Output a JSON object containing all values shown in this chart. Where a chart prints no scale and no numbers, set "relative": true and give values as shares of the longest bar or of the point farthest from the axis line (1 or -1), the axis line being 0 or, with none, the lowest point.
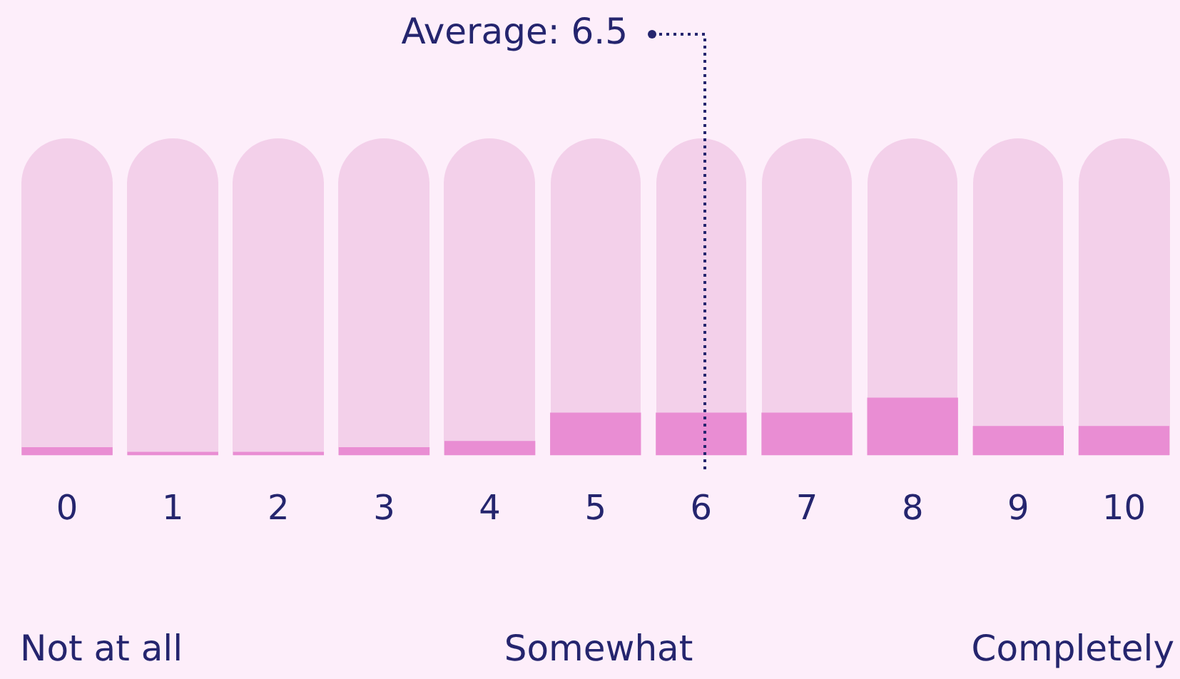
{
  "chart_data": {
    "type": "bar",
    "relative": true,
    "categories": [
      "0",
      "1",
      "2",
      "3",
      "4",
      "5",
      "6",
      "7",
      "8",
      "9",
      "10"
    ],
    "values": [
      0.14,
      0.06,
      0.06,
      0.14,
      0.25,
      0.74,
      0.74,
      0.74,
      1,
      0.51,
      0.51
    ],
    "color": "#e98dd3",
    "annotations": [
      "Average: 6.5",
      "Not at all",
      "Somewhat",
      "Completely"
    ],
    "grid": false,
    "legend": false
  }
}
